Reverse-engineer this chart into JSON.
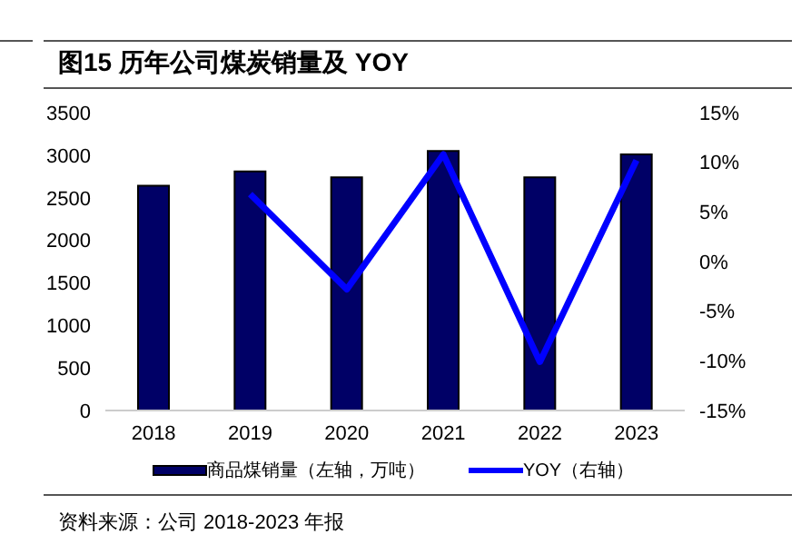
{
  "chart_data": {
    "type": "bar",
    "title": "图15 历年公司煤炭销量及 YOY",
    "categories": [
      "2018",
      "2019",
      "2020",
      "2021",
      "2022",
      "2023"
    ],
    "series": [
      {
        "name": "商品煤销量（左轴，万吨）",
        "color": "#000066",
        "values": [
          2640,
          2810,
          2740,
          3050,
          2740,
          3010
        ]
      },
      {
        "name": "YOY（右轴）",
        "type": "line",
        "axis": "y2",
        "color": "#0000ff",
        "values": [
          null,
          6.8,
          -2.8,
          10.8,
          -10.1,
          10.2
        ]
      }
    ],
    "ylim": [
      0,
      3500
    ],
    "yticks": [
      0,
      500,
      1000,
      1500,
      2000,
      2500,
      3000,
      3500
    ],
    "y2lim": [
      -15,
      15
    ],
    "y2ticks": [
      {
        "value": -15,
        "label": "-15%"
      },
      {
        "value": -10,
        "label": "-10%"
      },
      {
        "value": -5,
        "label": "-5%"
      },
      {
        "value": 0,
        "label": "0%"
      },
      {
        "value": 5,
        "label": "5%"
      },
      {
        "value": 10,
        "label": "10%"
      },
      {
        "value": 15,
        "label": "15%"
      }
    ],
    "grid": false,
    "legend": "bottom",
    "marker": "none",
    "annotations": [
      "资料来源：公司 2018-2023 年报"
    ]
  }
}
